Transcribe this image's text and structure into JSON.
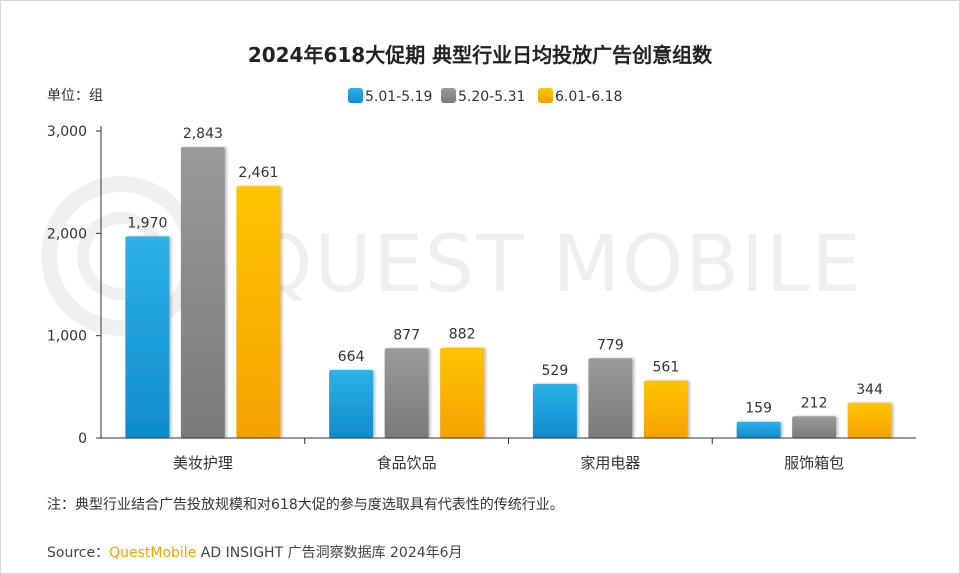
{
  "chart_data": {
    "type": "bar",
    "title": "2024年618大促期 典型行业日均投放广告创意组数",
    "unit_label": "单位：组",
    "categories": [
      "美妆护理",
      "食品饮品",
      "家用电器",
      "服饰箱包"
    ],
    "series": [
      {
        "name": "5.01-5.19",
        "color": "#1f9ed8",
        "values": [
          1970,
          664,
          529,
          159
        ],
        "labels": [
          "1,970",
          "664",
          "529",
          "159"
        ]
      },
      {
        "name": "5.20-5.31",
        "color": "#8c8c8c",
        "values": [
          2843,
          877,
          779,
          212
        ],
        "labels": [
          "2,843",
          "877",
          "779",
          "212"
        ]
      },
      {
        "name": "6.01-6.18",
        "color": "#f7b500",
        "values": [
          2461,
          882,
          561,
          344
        ],
        "labels": [
          "2,461",
          "882",
          "561",
          "344"
        ]
      }
    ],
    "ylim": [
      0,
      3000
    ],
    "yticks": [
      0,
      1000,
      2000,
      3000
    ],
    "ytick_labels": [
      "0",
      "1,000",
      "2,000",
      "3,000"
    ],
    "legend_position": "top-center",
    "grid": false
  },
  "note": "注：典型行业结合广告投放规模和对618大促的参与度选取具有代表性的传统行业。",
  "source": {
    "prefix": "Source：",
    "brand": "QuestMobile",
    "rest": " AD INSIGHT 广告洞察数据库 2024年6月"
  },
  "watermark": "QUEST MOBILE"
}
